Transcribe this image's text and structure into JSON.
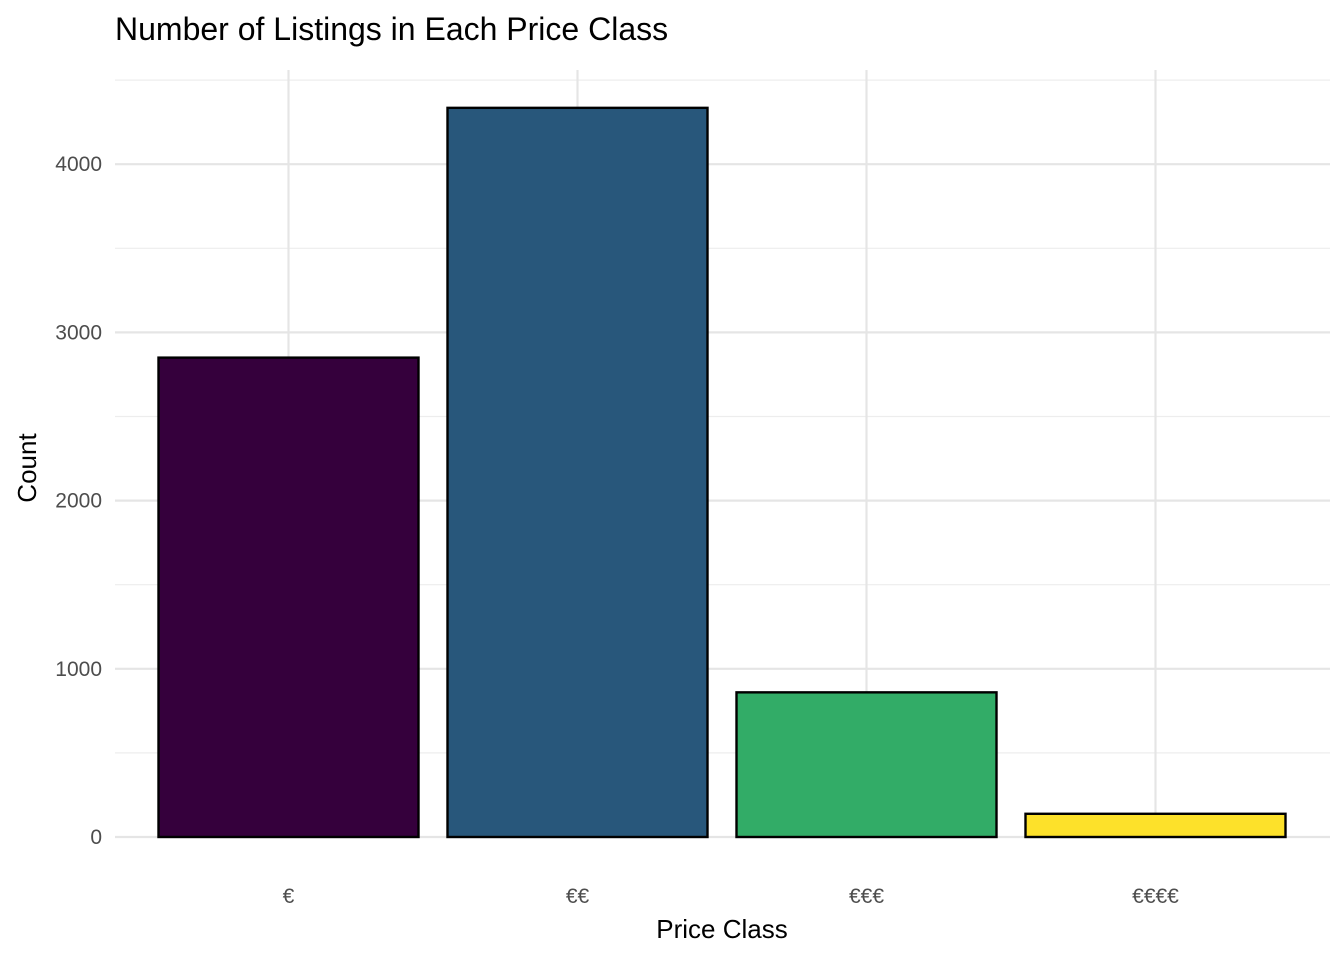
{
  "chart_data": {
    "type": "bar",
    "title": "Number of Listings in Each Price Class",
    "xlabel": "Price Class",
    "ylabel": "Count",
    "categories": [
      "€",
      "€€",
      "€€€",
      "€€€€"
    ],
    "values": [
      2850,
      4335,
      860,
      138
    ],
    "colors": [
      "#35003c",
      "#28577b",
      "#32ac67",
      "#fde12a"
    ],
    "bar_outline": "#000000",
    "ylim": [
      0,
      4560
    ],
    "yticks": [
      0,
      1000,
      2000,
      3000,
      4000
    ],
    "ytick_labels": [
      "0",
      "1000",
      "2000",
      "3000",
      "4000"
    ],
    "grid": true,
    "legend": false
  }
}
